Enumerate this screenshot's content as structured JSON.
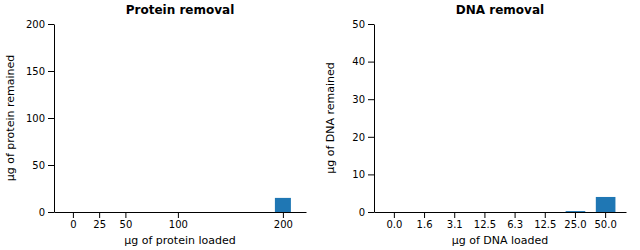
{
  "chart_data": [
    {
      "type": "bar",
      "title": "Protein removal",
      "x_label": "μg of protein loaded",
      "y_label": "μg of protein remained",
      "x": [
        200
      ],
      "values": [
        15
      ],
      "xlim": [
        -18,
        222
      ],
      "xticks": [
        0,
        25,
        50,
        100,
        200
      ],
      "ylim": [
        0,
        200
      ],
      "yticks": [
        0,
        50,
        100,
        150,
        200
      ]
    },
    {
      "type": "bar",
      "title": "DNA removal",
      "x_label": "μg of DNA loaded",
      "y_label": "μg of DNA remained",
      "categories": [
        "0.0",
        "1.6",
        "3.1",
        "12.5",
        "6.3",
        "12.5",
        "25.0",
        "50.0"
      ],
      "values": [
        null,
        null,
        null,
        null,
        null,
        null,
        0.25,
        4.0
      ],
      "ylim": [
        0,
        50
      ],
      "yticks": [
        0,
        10,
        20,
        30,
        40,
        50
      ]
    }
  ]
}
